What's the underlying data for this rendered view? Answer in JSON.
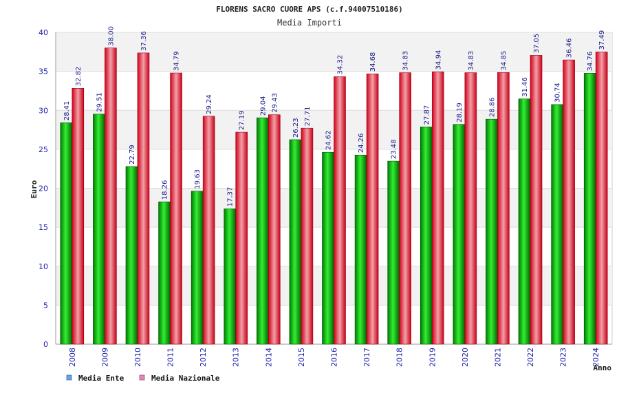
{
  "chart_data": {
    "type": "bar",
    "title": "FLORENS SACRO CUORE APS (c.f.94007510186)",
    "subtitle": "Media Importi",
    "xlabel": "Anno",
    "ylabel": "Euro",
    "ylim": [
      0,
      40
    ],
    "yticks": [
      "0",
      "5",
      "10",
      "15",
      "20",
      "25",
      "30",
      "35",
      "40"
    ],
    "grid": true,
    "legend_position": "bottom-left",
    "categories": [
      "2008",
      "2009",
      "2010",
      "2011",
      "2012",
      "2013",
      "2014",
      "2015",
      "2016",
      "2017",
      "2018",
      "2019",
      "2020",
      "2021",
      "2022",
      "2023",
      "2024"
    ],
    "series": [
      {
        "name": "Media Ente",
        "color": "#00aa00",
        "legend_color": "#66a3e0",
        "values": [
          28.41,
          29.51,
          22.79,
          18.26,
          19.63,
          17.37,
          29.04,
          26.23,
          24.62,
          24.26,
          23.48,
          27.87,
          28.19,
          28.86,
          31.46,
          30.74,
          34.76
        ],
        "labels": [
          "28.41",
          "29.51",
          "22.79",
          "18.26",
          "19.63",
          "17.37",
          "29.04",
          "26.23",
          "24.62",
          "24.26",
          "23.48",
          "27.87",
          "28.19",
          "28.86",
          "31.46",
          "30.74",
          "34.76"
        ]
      },
      {
        "name": "Media Nazionale",
        "color": "#e8102a",
        "legend_color": "#d98cb3",
        "values": [
          32.82,
          38.0,
          37.36,
          34.79,
          29.24,
          27.19,
          29.43,
          27.71,
          34.32,
          34.68,
          34.83,
          34.94,
          34.83,
          34.85,
          37.05,
          36.46,
          37.49
        ],
        "labels": [
          "32.82",
          "38.00",
          "37.36",
          "34.79",
          "29.24",
          "27.19",
          "29.43",
          "27.71",
          "34.32",
          "34.68",
          "34.83",
          "34.94",
          "34.83",
          "34.85",
          "37.05",
          "36.46",
          "37.49"
        ]
      }
    ]
  }
}
